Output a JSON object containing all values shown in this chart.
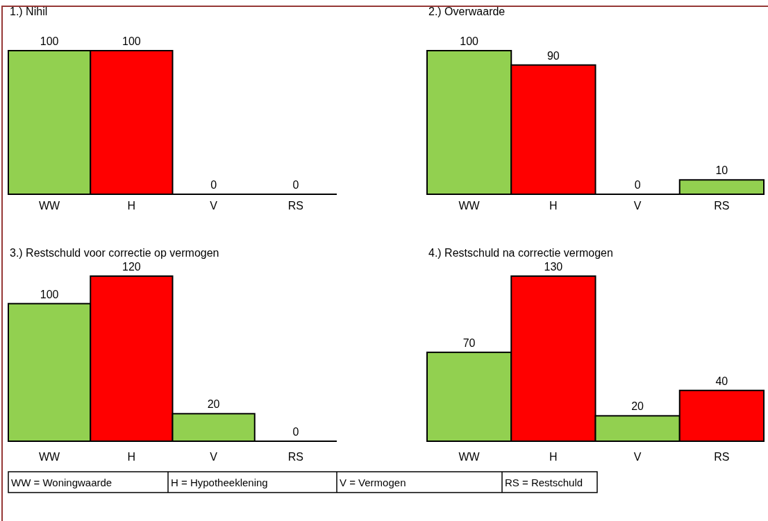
{
  "chart_data": [
    {
      "type": "bar",
      "title": "1.) Nihil",
      "categories": [
        "WW",
        "H",
        "V",
        "RS"
      ],
      "values": [
        100,
        100,
        0,
        0
      ],
      "colors": [
        "#92d050",
        "#ff0000",
        "#92d050",
        "#ff0000"
      ],
      "data_labels": true
    },
    {
      "type": "bar",
      "title": "2.) Overwaarde",
      "categories": [
        "WW",
        "H",
        "V",
        "RS"
      ],
      "values": [
        100,
        90,
        0,
        10
      ],
      "colors": [
        "#92d050",
        "#ff0000",
        "#92d050",
        "#92d050"
      ],
      "data_labels": true
    },
    {
      "type": "bar",
      "title": "3.) Restschuld voor correctie op vermogen",
      "categories": [
        "WW",
        "H",
        "V",
        "RS"
      ],
      "values": [
        100,
        120,
        20,
        0
      ],
      "colors": [
        "#92d050",
        "#ff0000",
        "#92d050",
        "#ff0000"
      ],
      "data_labels": true
    },
    {
      "type": "bar",
      "title": "4.) Restschuld na correctie vermogen",
      "categories": [
        "WW",
        "H",
        "V",
        "RS"
      ],
      "values": [
        70,
        130,
        20,
        40
      ],
      "colors": [
        "#92d050",
        "#ff0000",
        "#92d050",
        "#ff0000"
      ],
      "data_labels": true
    },
    {
      "type": "other",
      "annotations": [
        "WW = Woningwaarde",
        "H = Hypotheeklening",
        "V = Vermogen",
        "RS = Restschuld"
      ]
    }
  ]
}
